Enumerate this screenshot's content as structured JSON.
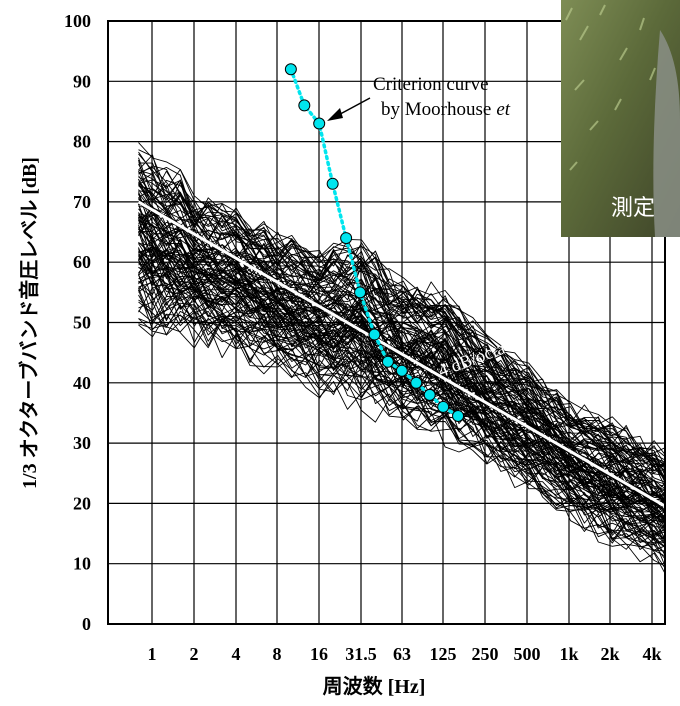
{
  "chart_data": {
    "type": "line",
    "xlabel": "周波数 [Hz]",
    "ylabel": "1/3 オクターブバンド音圧レベル [dB]",
    "ylim": [
      0,
      100
    ],
    "y_ticks": [
      0,
      10,
      20,
      30,
      40,
      50,
      60,
      70,
      80,
      90,
      100
    ],
    "x_scale": "log (1/3-octave bands)",
    "x_tick_labels": [
      "1",
      "2",
      "4",
      "8",
      "16",
      "31.5",
      "63",
      "125",
      "250",
      "500",
      "1k",
      "2k",
      "4k"
    ],
    "grid": true,
    "series": [
      {
        "name": "Criterion curve by Moorhouse et",
        "color": "#00e5ee",
        "style": "dotted line with circle markers",
        "points": [
          {
            "x": 10,
            "y": 92
          },
          {
            "x": 12.5,
            "y": 86
          },
          {
            "x": 16,
            "y": 83
          },
          {
            "x": 20,
            "y": 73
          },
          {
            "x": 25,
            "y": 64
          },
          {
            "x": 31.5,
            "y": 55
          },
          {
            "x": 40,
            "y": 48
          },
          {
            "x": 50,
            "y": 43.5
          },
          {
            "x": 63,
            "y": 42
          },
          {
            "x": 80,
            "y": 40
          },
          {
            "x": 100,
            "y": 38
          },
          {
            "x": 125,
            "y": 36
          },
          {
            "x": 160,
            "y": 34.5
          }
        ]
      },
      {
        "name": "4 dB/octave",
        "color": "#ffffff",
        "style": "solid reference line",
        "points": [
          {
            "x": 0.8,
            "y": 70
          },
          {
            "x": 5000,
            "y": 19.5
          }
        ]
      }
    ],
    "measured_curves": {
      "color": "#000000",
      "description": "many measured spectra",
      "count": 120,
      "envelope": [
        {
          "x": 0.8,
          "low": 48,
          "high": 81
        },
        {
          "x": 1,
          "low": 46,
          "high": 79
        },
        {
          "x": 1.6,
          "low": 45,
          "high": 76
        },
        {
          "x": 2,
          "low": 45,
          "high": 72
        },
        {
          "x": 4,
          "low": 43,
          "high": 70
        },
        {
          "x": 8,
          "low": 40,
          "high": 66
        },
        {
          "x": 16,
          "low": 37,
          "high": 63
        },
        {
          "x": 31.5,
          "low": 34,
          "high": 65
        },
        {
          "x": 63,
          "low": 31,
          "high": 58
        },
        {
          "x": 125,
          "low": 29,
          "high": 57
        },
        {
          "x": 250,
          "low": 25,
          "high": 49
        },
        {
          "x": 500,
          "low": 21,
          "high": 44
        },
        {
          "x": 1000,
          "low": 16,
          "high": 38
        },
        {
          "x": 2000,
          "low": 12,
          "high": 35
        },
        {
          "x": 4000,
          "low": 9,
          "high": 31
        },
        {
          "x": 5000,
          "low": 7,
          "high": 30
        }
      ]
    },
    "annotations": {
      "criterion_line1": "Criterion curve",
      "criterion_line2": "by Moorhouse",
      "criterion_italic": "et",
      "slope_label": "4 dB/octave"
    }
  },
  "photo": {
    "caption": "測定",
    "description": "photo of grass and ground"
  }
}
